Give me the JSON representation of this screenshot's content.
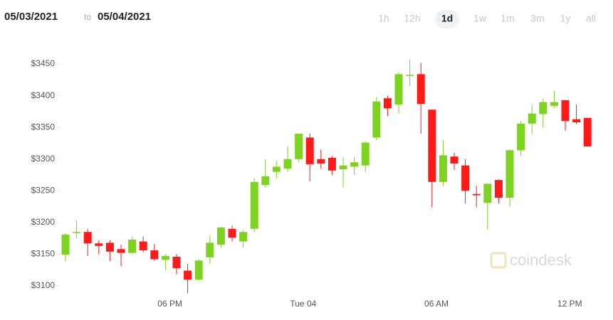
{
  "header": {
    "from": "05/03/2021",
    "to_word": "to",
    "to": "05/04/2021",
    "ranges": [
      "1h",
      "12h",
      "1d",
      "1w",
      "1m",
      "3m",
      "1y",
      "all"
    ],
    "selected_range": "1d"
  },
  "chart_data": {
    "type": "candlestick",
    "open": [
      3149,
      3184,
      3185,
      3167,
      3168,
      3158,
      3152,
      3170,
      3156,
      3141,
      3146,
      3124,
      3110,
      3145,
      3165,
      3190,
      3170,
      3190,
      3259,
      3280,
      3285,
      3300,
      3334,
      3300,
      3302,
      3284,
      3288,
      3290,
      3334,
      3396,
      3386,
      3432,
      3434,
      3378,
      3264,
      3304,
      3290,
      3245,
      3231,
      3267,
      3239,
      3314,
      3356,
      3371,
      3384,
      3393,
      3363,
      3365
    ],
    "high": [
      3183,
      3203,
      3190,
      3172,
      3172,
      3165,
      3178,
      3178,
      3166,
      3150,
      3150,
      3135,
      3142,
      3180,
      3193,
      3195,
      3188,
      3270,
      3300,
      3297,
      3320,
      3340,
      3340,
      3315,
      3305,
      3303,
      3303,
      3328,
      3398,
      3400,
      3437,
      3457,
      3452,
      3378,
      3330,
      3310,
      3300,
      3258,
      3262,
      3268,
      3316,
      3360,
      3386,
      3395,
      3408,
      3393,
      3386,
      3365
    ],
    "low": [
      3138,
      3175,
      3147,
      3150,
      3139,
      3131,
      3150,
      3153,
      3140,
      3125,
      3118,
      3088,
      3108,
      3135,
      3160,
      3170,
      3160,
      3185,
      3255,
      3270,
      3280,
      3295,
      3265,
      3285,
      3275,
      3255,
      3275,
      3280,
      3330,
      3368,
      3372,
      3415,
      3340,
      3224,
      3258,
      3283,
      3230,
      3224,
      3189,
      3230,
      3225,
      3305,
      3340,
      3350,
      3380,
      3345,
      3355,
      3320
    ],
    "close": [
      3181,
      3185,
      3167,
      3163,
      3154,
      3152,
      3173,
      3156,
      3142,
      3147,
      3128,
      3110,
      3140,
      3168,
      3192,
      3176,
      3185,
      3264,
      3273,
      3288,
      3300,
      3340,
      3292,
      3293,
      3282,
      3290,
      3295,
      3326,
      3391,
      3380,
      3434,
      3433,
      3387,
      3264,
      3306,
      3293,
      3250,
      3243,
      3261,
      3239,
      3314,
      3356,
      3372,
      3390,
      3390,
      3360,
      3358,
      3320
    ],
    "up_color": "#7ed321",
    "down_color": "#ff1a1a",
    "ylim": [
      3080,
      3480
    ],
    "yticks": [
      {
        "value": 3100,
        "label": "$3100"
      },
      {
        "value": 3150,
        "label": "$3150"
      },
      {
        "value": 3200,
        "label": "$3200"
      },
      {
        "value": 3250,
        "label": "$3250"
      },
      {
        "value": 3300,
        "label": "$3300"
      },
      {
        "value": 3350,
        "label": "$3350"
      },
      {
        "value": 3400,
        "label": "$3400"
      },
      {
        "value": 3450,
        "label": "$3450"
      }
    ],
    "xlim": [
      -1,
      48
    ],
    "xticks": [
      {
        "value": 9.4,
        "label": "06 PM"
      },
      {
        "value": 21.4,
        "label": "Tue 04"
      },
      {
        "value": 33.4,
        "label": "06 AM"
      },
      {
        "value": 45.4,
        "label": "12 PM"
      }
    ],
    "watermark": "coindesk"
  }
}
